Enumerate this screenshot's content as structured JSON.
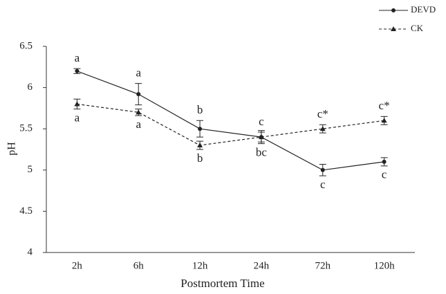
{
  "chart_data": {
    "type": "line",
    "x_label": "Postmortem Time",
    "y_label": "pH",
    "categories": [
      "2h",
      "6h",
      "12h",
      "24h",
      "72h",
      "120h"
    ],
    "series": [
      {
        "name": "DEVD",
        "color": "#222222",
        "dash": false,
        "marker": "circle",
        "values": [
          6.2,
          5.92,
          5.5,
          5.4,
          5.0,
          5.1
        ],
        "errors": [
          0.03,
          0.13,
          0.1,
          0.06,
          0.07,
          0.05
        ],
        "letters": [
          "a",
          "a",
          "b",
          "c",
          "c",
          "c"
        ]
      },
      {
        "name": "CK",
        "color": "#222222",
        "dash": true,
        "marker": "triangle",
        "values": [
          5.8,
          5.7,
          5.3,
          5.4,
          5.5,
          5.6
        ],
        "errors": [
          0.06,
          0.04,
          0.05,
          0.08,
          0.05,
          0.05
        ],
        "letters": [
          "a",
          "a",
          "b",
          "bc",
          "c*",
          "c*"
        ]
      }
    ],
    "ylim": [
      4,
      6.5
    ],
    "yticks": [
      4,
      4.5,
      5,
      5.5,
      6,
      6.5
    ],
    "grid": false
  }
}
